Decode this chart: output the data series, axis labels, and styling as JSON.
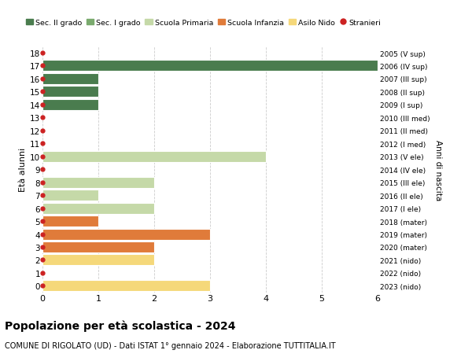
{
  "ages": [
    18,
    17,
    16,
    15,
    14,
    13,
    12,
    11,
    10,
    9,
    8,
    7,
    6,
    5,
    4,
    3,
    2,
    1,
    0
  ],
  "right_labels": [
    "2005 (V sup)",
    "2006 (IV sup)",
    "2007 (III sup)",
    "2008 (II sup)",
    "2009 (I sup)",
    "2010 (III med)",
    "2011 (II med)",
    "2012 (I med)",
    "2013 (V ele)",
    "2014 (IV ele)",
    "2015 (III ele)",
    "2016 (II ele)",
    "2017 (I ele)",
    "2018 (mater)",
    "2019 (mater)",
    "2020 (mater)",
    "2021 (nido)",
    "2022 (nido)",
    "2023 (nido)"
  ],
  "bar_values": [
    0,
    6,
    1,
    1,
    1,
    0,
    0,
    0,
    4,
    0,
    2,
    1,
    2,
    1,
    3,
    2,
    2,
    0,
    3
  ],
  "bar_colors": [
    "#4a7c4e",
    "#4a7c4e",
    "#4a7c4e",
    "#4a7c4e",
    "#4a7c4e",
    "#7aaa6e",
    "#7aaa6e",
    "#7aaa6e",
    "#c5d9a8",
    "#c5d9a8",
    "#c5d9a8",
    "#c5d9a8",
    "#c5d9a8",
    "#e07b3a",
    "#e07b3a",
    "#e07b3a",
    "#f5d87a",
    "#f5d87a",
    "#f5d87a"
  ],
  "stranieri_dots": [
    18,
    17,
    16,
    15,
    14,
    13,
    12,
    11,
    10,
    9,
    8,
    7,
    6,
    5,
    4,
    3,
    2,
    1,
    0
  ],
  "legend_labels": [
    "Sec. II grado",
    "Sec. I grado",
    "Scuola Primaria",
    "Scuola Infanzia",
    "Asilo Nido",
    "Stranieri"
  ],
  "legend_colors": [
    "#4a7c4e",
    "#7aaa6e",
    "#c5d9a8",
    "#e07b3a",
    "#f5d87a",
    "#cc2222"
  ],
  "title": "Popolazione per età scolastica - 2024",
  "subtitle": "COMUNE DI RIGOLATO (UD) - Dati ISTAT 1° gennaio 2024 - Elaborazione TUTTITALIA.IT",
  "ylabel": "Età alunni",
  "right_ylabel": "Anni di nascita",
  "xlim": [
    0,
    6
  ],
  "ylim": [
    -0.5,
    18.5
  ],
  "bg_color": "#ffffff",
  "grid_color": "#cccccc",
  "dot_color": "#cc2222",
  "bar_height": 0.85
}
